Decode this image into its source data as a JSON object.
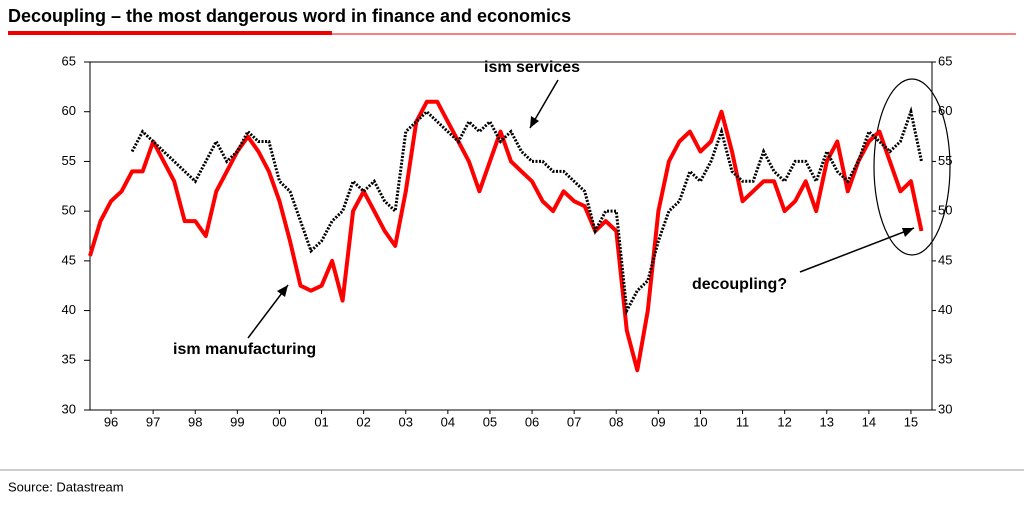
{
  "chart_data": {
    "type": "line",
    "title": "Decoupling – the most dangerous word in finance and economics",
    "source": "Source: Datastream",
    "annotations": [
      "ism services",
      "ism manufacturing",
      "decoupling?"
    ],
    "x": [
      1996,
      1996.25,
      1996.5,
      1996.75,
      1997,
      1997.25,
      1997.5,
      1997.75,
      1998,
      1998.25,
      1998.5,
      1998.75,
      1999,
      1999.25,
      1999.5,
      1999.75,
      2000,
      2000.25,
      2000.5,
      2000.75,
      2001,
      2001.25,
      2001.5,
      2001.75,
      2002,
      2002.25,
      2002.5,
      2002.75,
      2003,
      2003.25,
      2003.5,
      2003.75,
      2004,
      2004.25,
      2004.5,
      2004.75,
      2005,
      2005.25,
      2005.5,
      2005.75,
      2006,
      2006.25,
      2006.5,
      2006.75,
      2007,
      2007.25,
      2007.5,
      2007.75,
      2008,
      2008.25,
      2008.5,
      2008.75,
      2009,
      2009.25,
      2009.5,
      2009.75,
      2010,
      2010.25,
      2010.5,
      2010.75,
      2011,
      2011.25,
      2011.5,
      2011.75,
      2012,
      2012.25,
      2012.5,
      2012.75,
      2013,
      2013.25,
      2013.5,
      2013.75,
      2014,
      2014.25,
      2014.5,
      2014.75,
      2015,
      2015.25,
      2015.5,
      2015.75
    ],
    "series": [
      {
        "name": "ism manufacturing",
        "color": "#ff0000",
        "style": "solid",
        "values": [
          45.5,
          49,
          51,
          52,
          54,
          54,
          57,
          55,
          53,
          49,
          49,
          47.5,
          52,
          54,
          56,
          57.5,
          56,
          54,
          51,
          47,
          42.5,
          42,
          42.5,
          45,
          41,
          50,
          52,
          50,
          48,
          46.5,
          52,
          59,
          61,
          61,
          59,
          57,
          55,
          52,
          55,
          58,
          55,
          54,
          53,
          51,
          50,
          52,
          51,
          50.5,
          48,
          49,
          48,
          38,
          34,
          40,
          50,
          55,
          57,
          58,
          56,
          57,
          60,
          56,
          51,
          52,
          53,
          53,
          50,
          51,
          53,
          50,
          55,
          57,
          52,
          55,
          57,
          58,
          55,
          52,
          53,
          48
        ]
      },
      {
        "name": "ism services",
        "color": "#000000",
        "style": "dotted",
        "values": [
          null,
          null,
          null,
          null,
          56,
          58,
          57,
          56,
          55,
          54,
          53,
          55,
          57,
          55,
          56,
          58,
          57,
          57,
          53,
          52,
          49,
          46,
          47,
          49,
          50,
          53,
          52,
          53,
          51,
          50,
          58,
          59,
          60,
          59,
          58,
          57,
          59,
          58,
          59,
          57,
          58,
          56,
          55,
          55,
          54,
          54,
          53,
          52,
          48,
          50,
          50,
          40,
          42,
          43,
          47,
          50,
          51,
          54,
          53,
          55,
          58,
          54,
          53,
          53,
          56,
          54,
          53,
          55,
          55,
          53,
          56,
          54,
          53,
          55,
          58,
          57,
          56,
          57,
          60,
          55
        ]
      }
    ],
    "xlim": [
      1996,
      2016
    ],
    "xticks": [
      {
        "value": 1996.5,
        "label": "96"
      },
      {
        "value": 1997.5,
        "label": "97"
      },
      {
        "value": 1998.5,
        "label": "98"
      },
      {
        "value": 1999.5,
        "label": "99"
      },
      {
        "value": 2000.5,
        "label": "00"
      },
      {
        "value": 2001.5,
        "label": "01"
      },
      {
        "value": 2002.5,
        "label": "02"
      },
      {
        "value": 2003.5,
        "label": "03"
      },
      {
        "value": 2004.5,
        "label": "04"
      },
      {
        "value": 2005.5,
        "label": "05"
      },
      {
        "value": 2006.5,
        "label": "06"
      },
      {
        "value": 2007.5,
        "label": "07"
      },
      {
        "value": 2008.5,
        "label": "08"
      },
      {
        "value": 2009.5,
        "label": "09"
      },
      {
        "value": 2010.5,
        "label": "10"
      },
      {
        "value": 2011.5,
        "label": "11"
      },
      {
        "value": 2012.5,
        "label": "12"
      },
      {
        "value": 2013.5,
        "label": "13"
      },
      {
        "value": 2014.5,
        "label": "14"
      },
      {
        "value": 2015.5,
        "label": "15"
      }
    ],
    "ylim": [
      30,
      65
    ],
    "yticks": [
      30,
      35,
      40,
      45,
      50,
      55,
      60,
      65
    ],
    "y2lim": [
      30,
      65
    ],
    "y2ticks": [
      30,
      35,
      40,
      45,
      50,
      55,
      60,
      65
    ],
    "grid": false
  }
}
